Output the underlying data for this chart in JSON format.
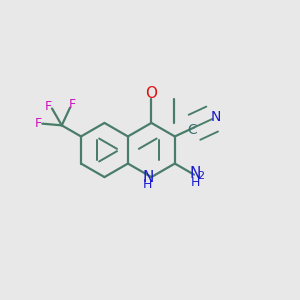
{
  "bg_color": "#e8e8e8",
  "bond_color": "#4a7c6a",
  "bond_width": 1.6,
  "dbo": 0.055,
  "atom_colors": {
    "N": "#1a1acc",
    "O": "#dd1111",
    "F": "#cc11bb",
    "C": "#3a7070"
  },
  "fs_large": 11,
  "fs_small": 9,
  "fs_sub": 8
}
